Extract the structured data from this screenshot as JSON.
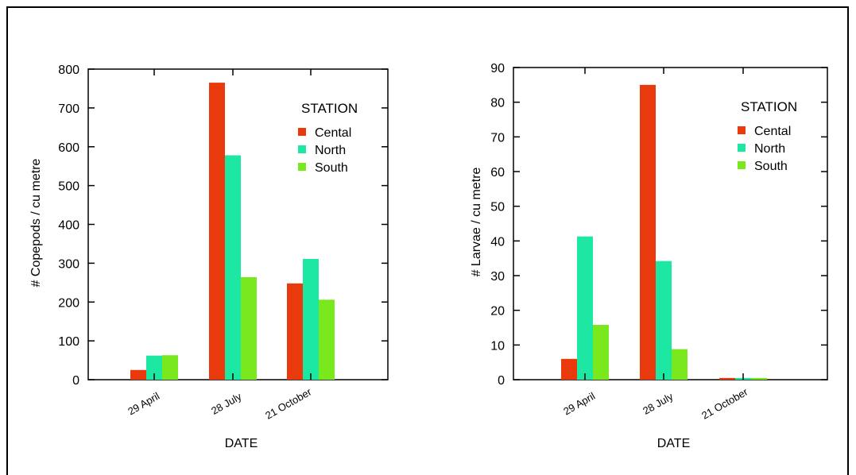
{
  "colors": {
    "Cental": "#e83a0c",
    "North": "#1ce8a4",
    "South": "#79e81c"
  },
  "chart_data": [
    {
      "type": "bar",
      "categories": [
        "29 April",
        "28 July",
        "21 October"
      ],
      "series": [
        {
          "name": "Cental",
          "values": [
            25,
            765,
            248
          ]
        },
        {
          "name": "North",
          "values": [
            62,
            578,
            311
          ]
        },
        {
          "name": "South",
          "values": [
            63,
            264,
            206
          ]
        }
      ],
      "xlabel": "DATE",
      "ylabel": "# Copepods / cu metre",
      "ylim": [
        0,
        800
      ],
      "yticks": [
        0,
        100,
        200,
        300,
        400,
        500,
        600,
        700,
        800
      ],
      "legend_title": "STATION",
      "legend_position": "top-right",
      "grid": false
    },
    {
      "type": "bar",
      "categories": [
        "29 April",
        "28 July",
        "21 October"
      ],
      "series": [
        {
          "name": "Cental",
          "values": [
            6,
            85,
            0.5
          ]
        },
        {
          "name": "North",
          "values": [
            41.3,
            34.2,
            0.5
          ]
        },
        {
          "name": "South",
          "values": [
            15.8,
            8.8,
            0.5
          ]
        }
      ],
      "xlabel": "DATE",
      "ylabel": "# Larvae / cu metre",
      "ylim": [
        0,
        90
      ],
      "yticks": [
        0,
        10,
        20,
        30,
        40,
        50,
        60,
        70,
        80,
        90
      ],
      "legend_title": "STATION",
      "legend_position": "top-right",
      "grid": false
    }
  ]
}
